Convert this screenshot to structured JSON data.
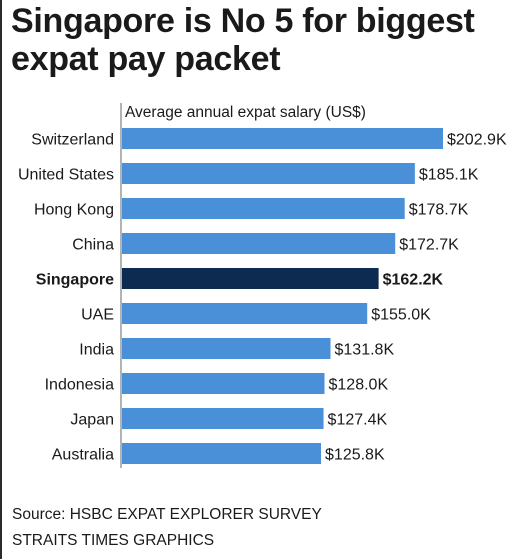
{
  "title": "Singapore is No 5 for biggest expat pay packet",
  "chart_data": {
    "type": "bar",
    "orientation": "horizontal",
    "axis_label": "Average annual expat salary (US$)",
    "unit": "K US$",
    "categories": [
      "Switzerland",
      "United States",
      "Hong Kong",
      "China",
      "Singapore",
      "UAE",
      "India",
      "Indonesia",
      "Japan",
      "Australia"
    ],
    "values": [
      202.9,
      185.1,
      178.7,
      172.7,
      162.2,
      155.0,
      131.8,
      128.0,
      127.4,
      125.8
    ],
    "value_labels": [
      "$202.9K",
      "$185.1K",
      "$178.7K",
      "$172.7K",
      "$162.2K",
      "$155.0K",
      "$131.8K",
      "$128.0K",
      "$127.4K",
      "$125.8K"
    ],
    "highlight_index": 4,
    "xlim": [
      0,
      202.9
    ],
    "grid": false,
    "legend": "none"
  },
  "colors": {
    "bar": "#4a90d9",
    "highlight_bar": "#0d2b50",
    "text": "#1a1a1a",
    "axis": "#9a9a9a"
  },
  "source": {
    "line1": "Source: HSBC EXPAT EXPLORER SURVEY",
    "line2": "STRAITS TIMES GRAPHICS"
  }
}
